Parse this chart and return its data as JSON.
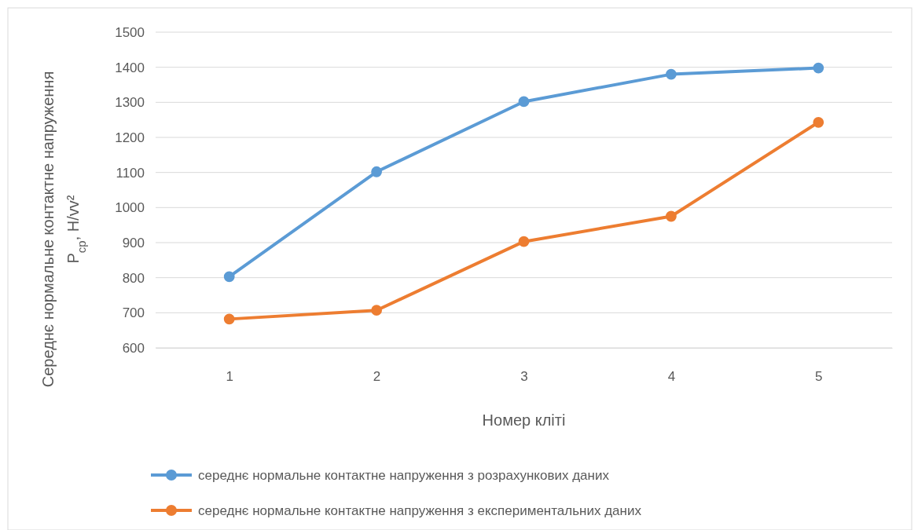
{
  "chart_data": {
    "type": "line",
    "xlabel": "Номер кліті",
    "ylabel": "Середнє нормальне контактне напруження\nP$_{ср}$, Н/vv²",
    "categories": [
      "1",
      "2",
      "3",
      "4",
      "5"
    ],
    "series": [
      {
        "name": "середнє нормальне контактне напруження з розрахункових даних",
        "color": "#5b9bd5",
        "values": [
          803,
          1102,
          1302,
          1380,
          1398
        ]
      },
      {
        "name": "середнє нормальне контактне напруження з експериментальних даних",
        "color": "#ed7d31",
        "values": [
          682,
          707,
          903,
          975,
          1243
        ]
      }
    ],
    "ylim": [
      600,
      1500
    ],
    "yticks": [
      600,
      700,
      800,
      900,
      1000,
      1100,
      1200,
      1300,
      1400,
      1500
    ],
    "grid": "y",
    "legend": "bottom",
    "marker": "circle",
    "line_style": "solid"
  }
}
